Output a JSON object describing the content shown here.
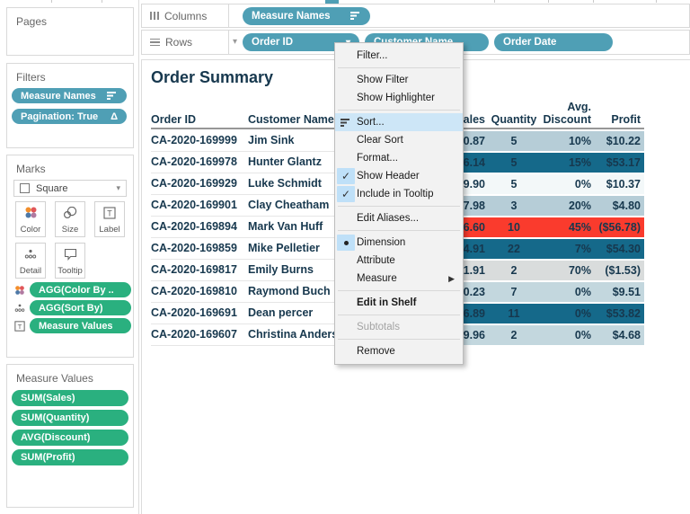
{
  "shelves": {
    "columns": {
      "label": "Columns",
      "pills": [
        {
          "label": "Measure Names",
          "icon": "sort-icon"
        }
      ]
    },
    "rows": {
      "label": "Rows",
      "pills": [
        {
          "label": "Order ID",
          "icon": "caret-down-icon"
        },
        {
          "label": "Customer Name"
        },
        {
          "label": "Order Date"
        }
      ]
    }
  },
  "sidebar": {
    "pages": {
      "label": "Pages"
    },
    "filters": {
      "label": "Filters",
      "pills": [
        {
          "label": "Measure Names",
          "icon": "sort-icon"
        },
        {
          "label": "Pagination: True",
          "icon": "delta-icon"
        }
      ]
    },
    "marks": {
      "label": "Marks",
      "mark_type": "Square",
      "buttons": [
        {
          "label": "Color"
        },
        {
          "label": "Size"
        },
        {
          "label": "Label"
        },
        {
          "label": "Detail"
        },
        {
          "label": "Tooltip"
        }
      ],
      "pills": [
        {
          "icon": "color-icon",
          "label": "AGG(Color By .."
        },
        {
          "icon": "detail-icon",
          "label": "AGG(Sort By)"
        },
        {
          "icon": "text-icon",
          "label": "Measure Values"
        }
      ]
    },
    "measure_values": {
      "label": "Measure Values",
      "pills": [
        "SUM(Sales)",
        "SUM(Quantity)",
        "AVG(Discount)",
        "SUM(Profit)"
      ]
    }
  },
  "sheet": {
    "title": "Order Summary",
    "columns": {
      "order_id": "Order ID",
      "customer": "Customer Name",
      "sales": "Sales",
      "quantity": "Quantity",
      "discount_line1": "Avg.",
      "discount_line2": "Discount",
      "profit": "Profit"
    },
    "rows": [
      {
        "order_id": "CA-2020-169999",
        "customer": "Jim Sink",
        "sales": "40.87",
        "quantity": "5",
        "discount": "10%",
        "profit": "$10.22",
        "row_color": "#b6cdd7"
      },
      {
        "order_id": "CA-2020-169978",
        "customer": "Hunter Glantz",
        "sales": "86.14",
        "quantity": "5",
        "discount": "15%",
        "profit": "$53.17",
        "row_color": "#15698a"
      },
      {
        "order_id": "CA-2020-169929",
        "customer": "Luke Schmidt",
        "sales": "9.90",
        "quantity": "5",
        "discount": "0%",
        "profit": "$10.37",
        "row_color": "#f3f8f9"
      },
      {
        "order_id": "CA-2020-169901",
        "customer": "Clay Cheatham",
        "sales": "7.98",
        "quantity": "3",
        "discount": "20%",
        "profit": "$4.80",
        "row_color": "#b6cdd7"
      },
      {
        "order_id": "CA-2020-169894",
        "customer": "Mark Van Huff",
        "sales": "36.60",
        "quantity": "10",
        "discount": "45%",
        "profit": "($56.78)",
        "row_color": "#fa3b2d"
      },
      {
        "order_id": "CA-2020-169859",
        "customer": "Mike Pelletier",
        "sales": "34.91",
        "quantity": "22",
        "discount": "7%",
        "profit": "$54.30",
        "row_color": "#15698a"
      },
      {
        "order_id": "CA-2020-169817",
        "customer": "Emily Burns",
        "sales": "1.91",
        "quantity": "2",
        "discount": "70%",
        "profit": "($1.53)",
        "row_color": "#d9dcdc"
      },
      {
        "order_id": "CA-2020-169810",
        "customer": "Raymond Buch",
        "sales": "0.23",
        "quantity": "7",
        "discount": "0%",
        "profit": "$9.51",
        "row_color": "#c3d7de"
      },
      {
        "order_id": "CA-2020-169691",
        "customer": "Dean percer",
        "sales": "46.89",
        "quantity": "11",
        "discount": "0%",
        "profit": "$53.82",
        "row_color": "#15698a"
      },
      {
        "order_id": "CA-2020-169607",
        "customer": "Christina Anders",
        "sales": "9.96",
        "quantity": "2",
        "discount": "0%",
        "profit": "$4.68",
        "row_color": "#c3d7de"
      }
    ]
  },
  "context_menu": {
    "items": [
      {
        "label": "Filter..."
      },
      {
        "separator": true
      },
      {
        "label": "Show Filter"
      },
      {
        "label": "Show Highlighter"
      },
      {
        "separator": true
      },
      {
        "label": "Sort...",
        "icon": "sort-icon",
        "highlighted": true
      },
      {
        "label": "Clear Sort"
      },
      {
        "label": "Format..."
      },
      {
        "label": "Show Header",
        "checked": true
      },
      {
        "label": "Include in Tooltip",
        "checked": true
      },
      {
        "separator": true
      },
      {
        "label": "Edit Aliases..."
      },
      {
        "separator": true
      },
      {
        "label": "Dimension",
        "radio": true
      },
      {
        "label": "Attribute"
      },
      {
        "label": "Measure",
        "submenu": true
      },
      {
        "separator": true
      },
      {
        "label": "Edit in Shelf",
        "bold": true
      },
      {
        "separator": true
      },
      {
        "label": "Subtotals",
        "disabled": true
      },
      {
        "separator": true
      },
      {
        "label": "Remove"
      }
    ]
  },
  "colors": {
    "pill_teal": "#4f9fb5",
    "pill_green": "#2ab07f",
    "row_dark_teal": "#15698a",
    "row_light_blue": "#b6cdd7",
    "row_pale_blue": "#c3d7de",
    "row_gray": "#d9dcdc",
    "row_red": "#fa3b2d",
    "text_navy": "#17384e",
    "menu_highlight": "#cde6f7",
    "mark_color_dots": [
      "#f28e2b",
      "#e15759",
      "#4e79a7",
      "#b07aa1"
    ]
  }
}
